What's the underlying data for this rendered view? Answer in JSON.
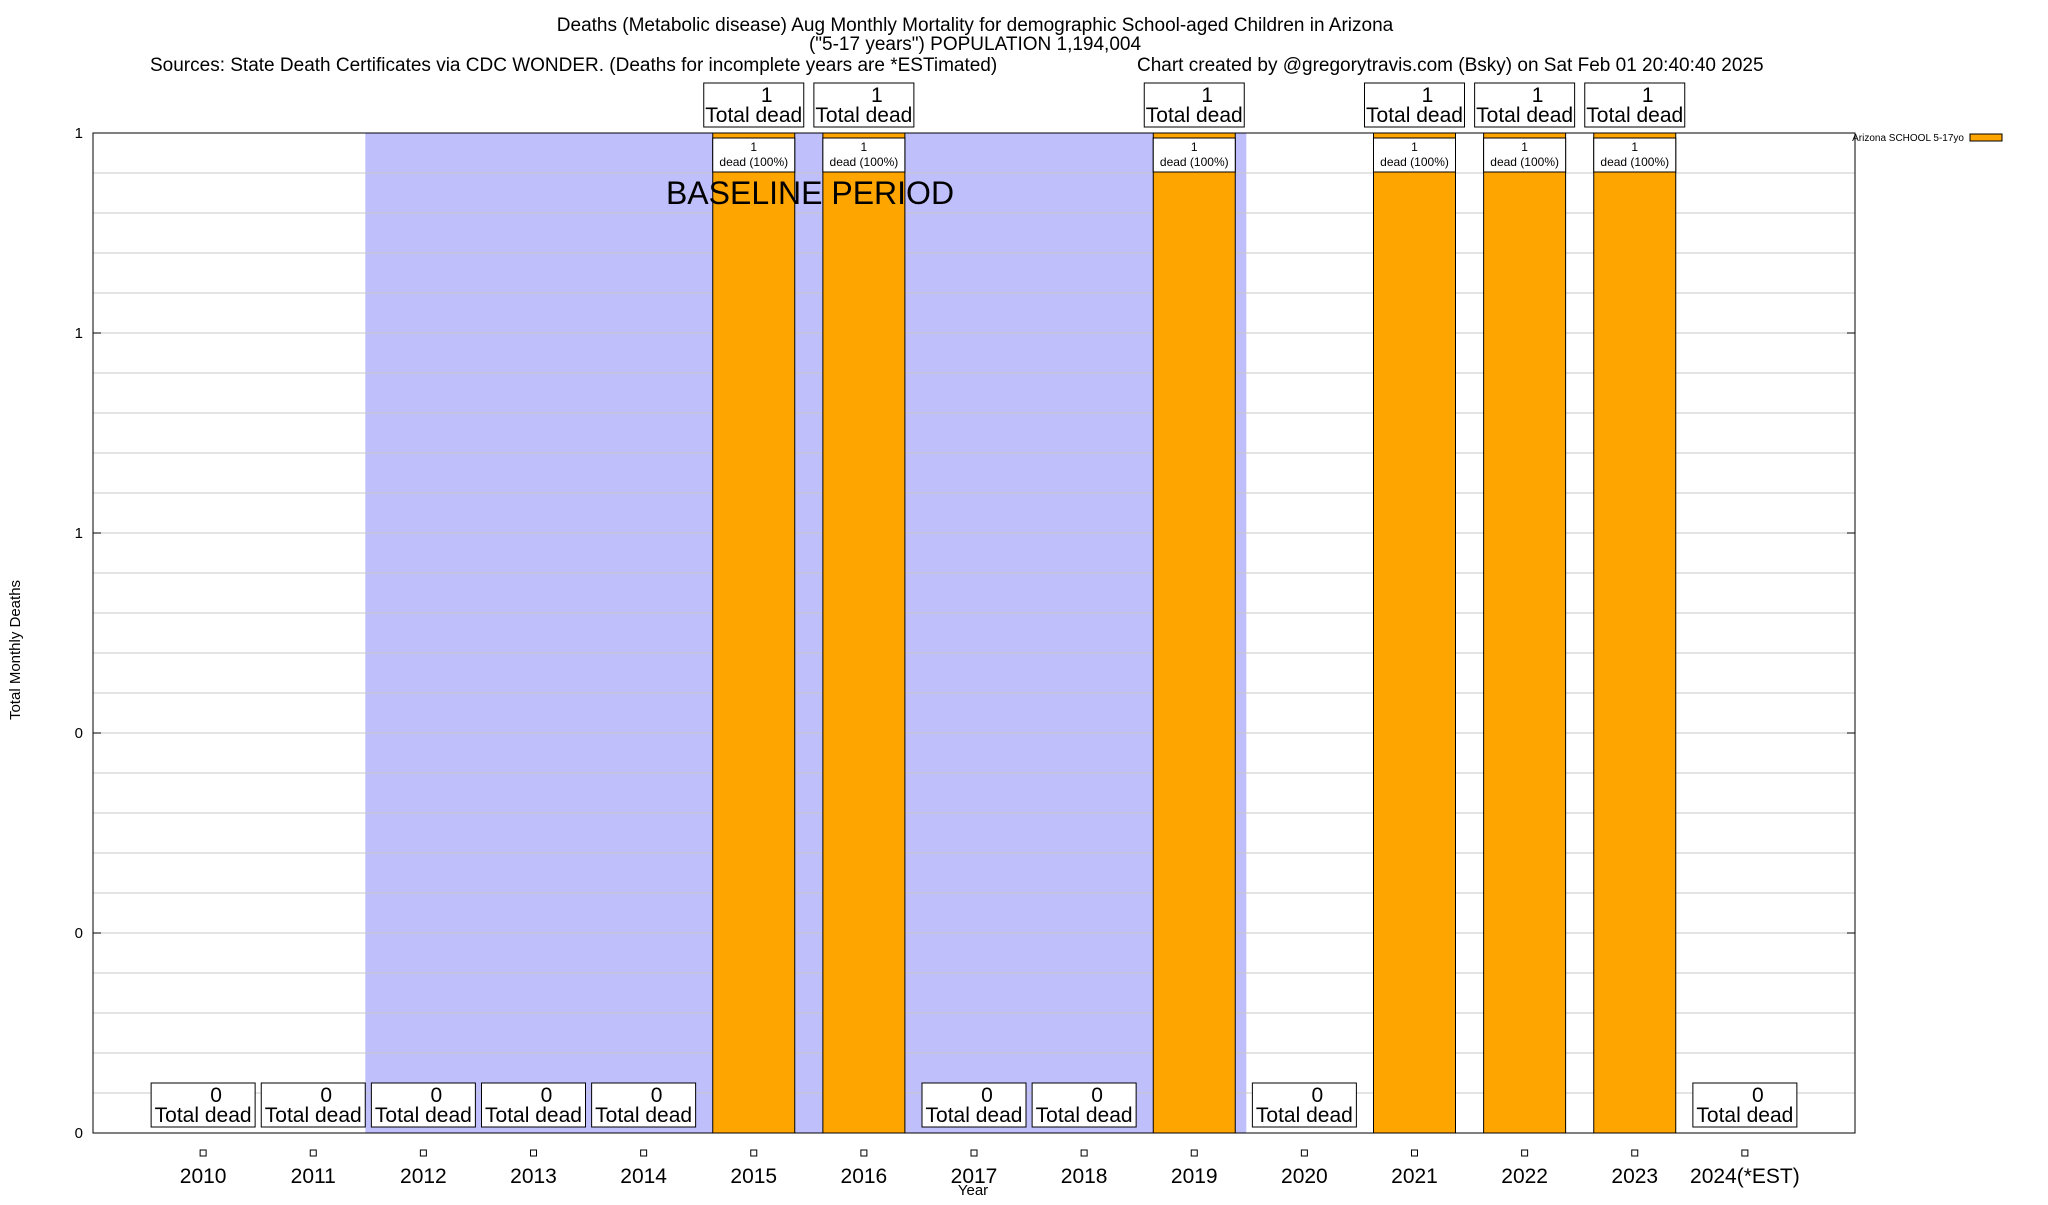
{
  "chart_data": {
    "type": "bar",
    "title_lines": [
      "Deaths (Metabolic disease) Aug Monthly Mortality for demographic School-aged Children in Arizona",
      "(\"5-17 years\") POPULATION 1,194,004"
    ],
    "sources": "Sources: State Death Certificates via CDC WONDER. (Deaths for incomplete years are *ESTimated)",
    "credit": "Chart created by @gregorytravis.com (Bsky) on Sat Feb 01 20:40:40 2025",
    "xlabel": "Year",
    "ylabel": "Total Monthly Deaths",
    "categories": [
      "2010",
      "2011",
      "2012",
      "2013",
      "2014",
      "2015",
      "2016",
      "2017",
      "2018",
      "2019",
      "2020",
      "2021",
      "2022",
      "2023",
      "2024(*EST)"
    ],
    "series": [
      {
        "name": "Arizona SCHOOL 5-17yo",
        "color": "#ffa500",
        "values": [
          0,
          0,
          0,
          0,
          0,
          1,
          1,
          0,
          0,
          1,
          0,
          1,
          1,
          1,
          0
        ]
      }
    ],
    "ylim": [
      0,
      1
    ],
    "y_ticks": [
      {
        "value": 0.0,
        "label": "0"
      },
      {
        "value": 0.2,
        "label": "0"
      },
      {
        "value": 0.4,
        "label": "0"
      },
      {
        "value": 0.6,
        "label": "1"
      },
      {
        "value": 0.8,
        "label": "1"
      },
      {
        "value": 1.0,
        "label": "1"
      }
    ],
    "y_gridlines": 25,
    "baseline_period": {
      "label": "BASELINE PERIOD",
      "start": "2012",
      "end": "2019",
      "color": "#bfbffc"
    },
    "total_label_suffix": "Total dead",
    "bar_label_suffix": "dead (100%)",
    "legend_position": "top-right",
    "grid": true
  }
}
